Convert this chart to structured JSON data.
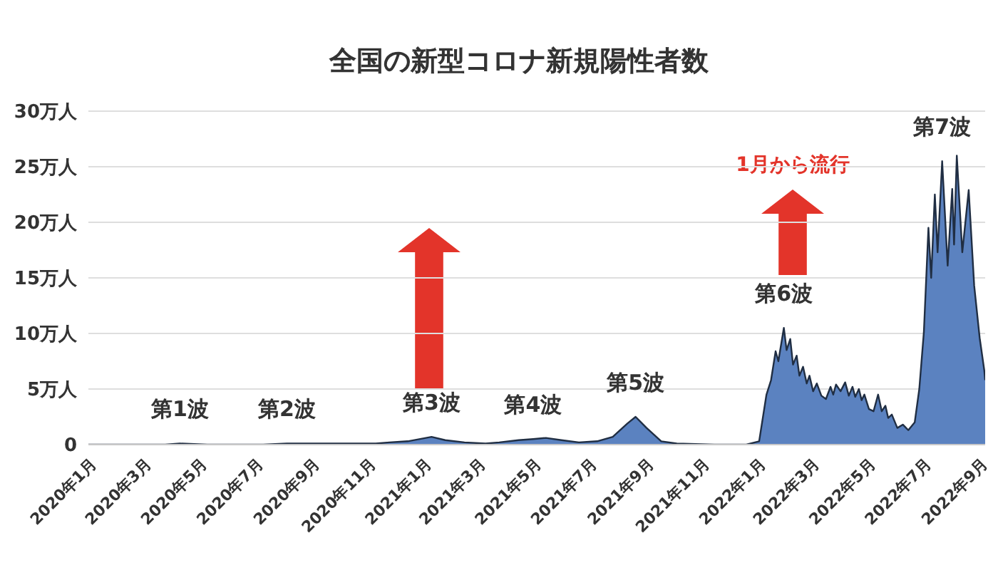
{
  "chart_data": {
    "type": "area",
    "title": "全国の新型コロナ新規陽性者数",
    "x": [
      "2020-01-01",
      "2020-03-01",
      "2020-03-25",
      "2020-04-10",
      "2020-05-10",
      "2020-06-20",
      "2020-07-10",
      "2020-08-05",
      "2020-09-05",
      "2020-10-10",
      "2020-11-10",
      "2020-11-25",
      "2020-12-15",
      "2021-01-10",
      "2021-01-25",
      "2021-02-15",
      "2021-03-10",
      "2021-03-25",
      "2021-04-15",
      "2021-05-01",
      "2021-05-15",
      "2021-06-01",
      "2021-06-20",
      "2021-07-10",
      "2021-07-27",
      "2021-08-12",
      "2021-08-21",
      "2021-09-02",
      "2021-09-18",
      "2021-10-05",
      "2021-11-15",
      "2021-12-20",
      "2022-01-03",
      "2022-01-11",
      "2022-01-16",
      "2022-01-21",
      "2022-01-24",
      "2022-01-30",
      "2022-02-02",
      "2022-02-06",
      "2022-02-09",
      "2022-02-13",
      "2022-02-16",
      "2022-02-20",
      "2022-02-24",
      "2022-02-27",
      "2022-03-03",
      "2022-03-07",
      "2022-03-12",
      "2022-03-17",
      "2022-03-22",
      "2022-03-25",
      "2022-03-28",
      "2022-04-02",
      "2022-04-07",
      "2022-04-11",
      "2022-04-15",
      "2022-04-18",
      "2022-04-22",
      "2022-04-25",
      "2022-04-28",
      "2022-05-03",
      "2022-05-08",
      "2022-05-13",
      "2022-05-17",
      "2022-05-21",
      "2022-05-24",
      "2022-05-28",
      "2022-06-03",
      "2022-06-09",
      "2022-06-15",
      "2022-06-22",
      "2022-06-27",
      "2022-07-02",
      "2022-07-07",
      "2022-07-10",
      "2022-07-14",
      "2022-07-17",
      "2022-07-22",
      "2022-07-28",
      "2022-08-02",
      "2022-08-04",
      "2022-08-07",
      "2022-08-13",
      "2022-08-20",
      "2022-08-26",
      "2022-09-01",
      "2022-09-06",
      "2022-09-07"
    ],
    "values": [
      0,
      0,
      0,
      0.1,
      0,
      0,
      0,
      0.1,
      0.1,
      0.1,
      0.1,
      0.2,
      0.3,
      0.7,
      0.4,
      0.2,
      0.1,
      0.2,
      0.4,
      0.5,
      0.6,
      0.4,
      0.2,
      0.3,
      0.7,
      1.9,
      2.5,
      1.5,
      0.3,
      0.1,
      0,
      0,
      0.3,
      4.5,
      5.8,
      8.4,
      7.5,
      10.5,
      8.5,
      9.5,
      7.2,
      8,
      6.2,
      7,
      5.5,
      6.2,
      4.8,
      5.5,
      4.4,
      4.1,
      5.2,
      4.5,
      5.4,
      4.8,
      5.6,
      4.4,
      5.2,
      4.3,
      5,
      4,
      4.5,
      3.2,
      3,
      4.5,
      3,
      3.5,
      2.4,
      2.7,
      1.5,
      1.8,
      1.3,
      2,
      5,
      10.1,
      19.5,
      15,
      22.5,
      17.3,
      25.5,
      16.1,
      23,
      18,
      26,
      17.3,
      22.9,
      14.3,
      9.6,
      6.7,
      5.8
    ],
    "color": "#5b82c0",
    "xlim": [
      "2020-01-01",
      "2022-09-07"
    ],
    "xticks": [
      {
        "value": "2020-01",
        "label": "2020年1月"
      },
      {
        "value": "2020-03",
        "label": "2020年3月"
      },
      {
        "value": "2020-05",
        "label": "2020年5月"
      },
      {
        "value": "2020-07",
        "label": "2020年7月"
      },
      {
        "value": "2020-09",
        "label": "2020年9月"
      },
      {
        "value": "2020-11",
        "label": "2020年11月"
      },
      {
        "value": "2021-01",
        "label": "2021年1月"
      },
      {
        "value": "2021-03",
        "label": "2021年3月"
      },
      {
        "value": "2021-05",
        "label": "2021年5月"
      },
      {
        "value": "2021-07",
        "label": "2021年7月"
      },
      {
        "value": "2021-09",
        "label": "2021年9月"
      },
      {
        "value": "2021-11",
        "label": "2021年11月"
      },
      {
        "value": "2022-01",
        "label": "2022年1月"
      },
      {
        "value": "2022-03",
        "label": "2022年3月"
      },
      {
        "value": "2022-05",
        "label": "2022年5月"
      },
      {
        "value": "2022-07",
        "label": "2022年7月"
      },
      {
        "value": "2022-09",
        "label": "2022年9月"
      }
    ],
    "ylim": [
      0,
      30
    ],
    "yticks": [
      0,
      {
        "value": 5,
        "label": "5万人"
      },
      {
        "value": 10,
        "label": "10万人"
      },
      {
        "value": 15,
        "label": "15万人"
      },
      {
        "value": 20,
        "label": "20万人"
      },
      {
        "value": 25,
        "label": "25万人"
      },
      {
        "value": 30,
        "label": "30万人"
      }
    ],
    "grid": "y",
    "annotations": [
      {
        "text": "第1波",
        "x": "2020-04-10",
        "y": 0.1
      },
      {
        "text": "第2波",
        "x": "2020-08-05",
        "y": 0.1
      },
      {
        "text": "第3波",
        "x": "2021-01-10",
        "y": 0.7
      },
      {
        "text": "第4波",
        "x": "2021-05-01",
        "y": 0.5
      },
      {
        "text": "第5波",
        "x": "2021-08-21",
        "y": 2.5
      },
      {
        "text": "第6波",
        "x": "2022-01-30",
        "y": 10.5
      },
      {
        "text": "第7波",
        "x": "2022-07-22",
        "y": 25.5
      },
      "1月から流行"
    ]
  }
}
